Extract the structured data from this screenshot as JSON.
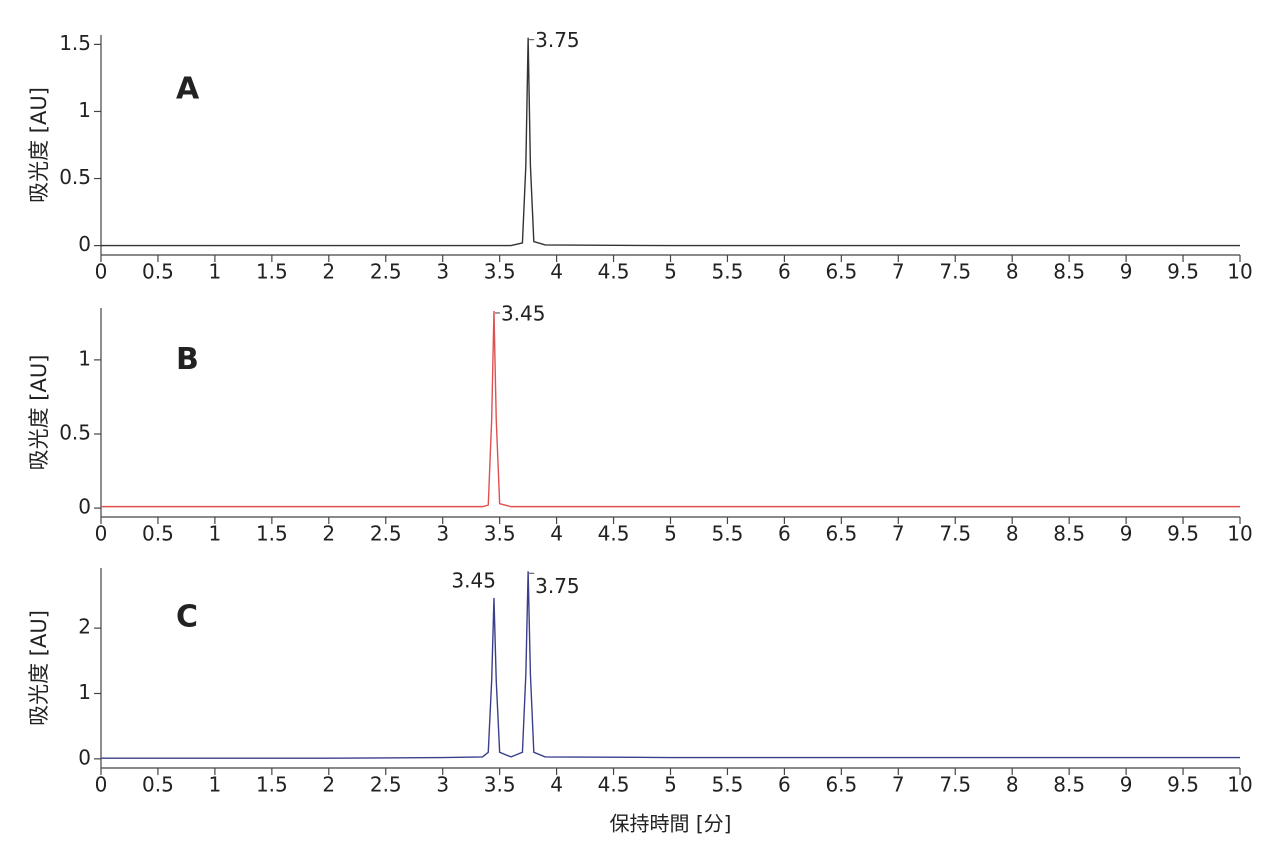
{
  "chart_data": [
    {
      "type": "line",
      "panel_label": "A",
      "ylabel": "吸光度 [AU]",
      "x": [
        0,
        1,
        2,
        3,
        3.6,
        3.7,
        3.73,
        3.75,
        3.77,
        3.8,
        3.9,
        5,
        6,
        7,
        8,
        9,
        10
      ],
      "series": [
        {
          "color": "#333333",
          "values": [
            0,
            0,
            0,
            0,
            0,
            0.02,
            0.6,
            1.55,
            0.6,
            0.03,
            0.005,
            0,
            0,
            0,
            0,
            0,
            0
          ]
        }
      ],
      "xlim": [
        0,
        10
      ],
      "xticks": [
        0,
        0.5,
        1,
        1.5,
        2,
        2.5,
        3,
        3.5,
        4,
        4.5,
        5,
        5.5,
        6,
        6.5,
        7,
        7.5,
        8,
        8.5,
        9,
        9.5,
        10
      ],
      "ylim": [
        -0.07,
        1.57
      ],
      "yticks": [
        0,
        0.5,
        1,
        1.5
      ],
      "peak_labels": [
        3.75
      ]
    },
    {
      "type": "line",
      "panel_label": "B",
      "ylabel": "吸光度 [AU]",
      "x": [
        0,
        1,
        2,
        3,
        3.35,
        3.4,
        3.43,
        3.45,
        3.47,
        3.5,
        3.6,
        5,
        6,
        7,
        8,
        9,
        10
      ],
      "series": [
        {
          "color": "#e05050",
          "values": [
            0.01,
            0.01,
            0.01,
            0.01,
            0.01,
            0.02,
            0.6,
            1.33,
            0.6,
            0.03,
            0.01,
            0.01,
            0.01,
            0.01,
            0.01,
            0.01,
            0.01
          ]
        }
      ],
      "xlim": [
        0,
        10
      ],
      "xticks": [
        0,
        0.5,
        1,
        1.5,
        2,
        2.5,
        3,
        3.5,
        4,
        4.5,
        5,
        5.5,
        6,
        6.5,
        7,
        7.5,
        8,
        8.5,
        9,
        9.5,
        10
      ],
      "ylim": [
        -0.06,
        1.35
      ],
      "yticks": [
        0,
        0.5,
        1
      ],
      "peak_labels": [
        3.45
      ]
    },
    {
      "type": "line",
      "panel_label": "C",
      "ylabel": "吸光度 [AU]",
      "xlabel": "保持時間 [分]",
      "x": [
        0,
        1,
        2,
        3,
        3.35,
        3.4,
        3.43,
        3.45,
        3.47,
        3.5,
        3.6,
        3.7,
        3.73,
        3.75,
        3.77,
        3.8,
        3.9,
        5,
        6,
        7,
        8,
        9,
        10
      ],
      "series": [
        {
          "color": "#3a3f8a",
          "values": [
            0.01,
            0.01,
            0.01,
            0.02,
            0.03,
            0.1,
            1.2,
            2.46,
            1.2,
            0.1,
            0.03,
            0.1,
            1.3,
            2.87,
            1.3,
            0.1,
            0.03,
            0.02,
            0.02,
            0.02,
            0.02,
            0.02,
            0.02
          ]
        }
      ],
      "xlim": [
        0,
        10
      ],
      "xticks": [
        0,
        0.5,
        1,
        1.5,
        2,
        2.5,
        3,
        3.5,
        4,
        4.5,
        5,
        5.5,
        6,
        6.5,
        7,
        7.5,
        8,
        8.5,
        9,
        9.5,
        10
      ],
      "ylim": [
        -0.14,
        2.92
      ],
      "yticks": [
        0,
        1,
        2
      ],
      "peak_labels": [
        3.45,
        3.75
      ]
    }
  ]
}
